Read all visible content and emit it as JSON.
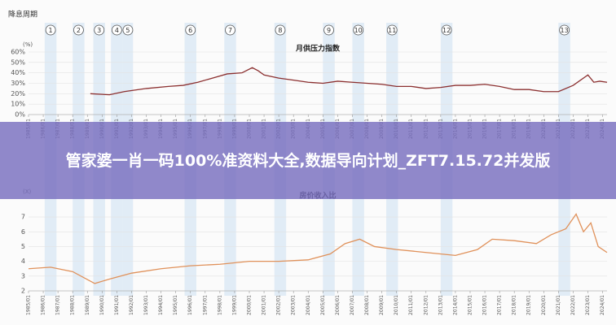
{
  "rate_cut_cycles": {
    "label": "降息周期",
    "xlim": [
      1985,
      2024.3
    ],
    "periods": [
      {
        "label": "1",
        "start": 1986.1,
        "end": 1986.9
      },
      {
        "label": "2",
        "start": 1988.0,
        "end": 1988.8
      },
      {
        "label": "3",
        "start": 1989.4,
        "end": 1990.2
      },
      {
        "label": "4",
        "start": 1990.6,
        "end": 1991.4
      },
      {
        "label": "5",
        "start": 1991.4,
        "end": 1992.1
      },
      {
        "label": "6",
        "start": 1995.6,
        "end": 1996.4
      },
      {
        "label": "7",
        "start": 1998.3,
        "end": 1999.1
      },
      {
        "label": "8",
        "start": 2001.7,
        "end": 2002.5
      },
      {
        "label": "9",
        "start": 2005.0,
        "end": 2005.8
      },
      {
        "label": "10",
        "start": 2007.0,
        "end": 2007.8
      },
      {
        "label": "11",
        "start": 2009.3,
        "end": 2010.1
      },
      {
        "label": "12",
        "start": 2013.0,
        "end": 2013.8
      },
      {
        "label": "13",
        "start": 2021.0,
        "end": 2021.8
      }
    ]
  },
  "chart_data": [
    {
      "type": "line",
      "title": "月供压力指数",
      "y_unit": "(%)",
      "xlim": [
        1985,
        2024.3
      ],
      "ylim": [
        0,
        60
      ],
      "yticks": [
        {
          "value": 0,
          "label": "0%"
        },
        {
          "value": 10,
          "label": "10%"
        },
        {
          "value": 20,
          "label": "20%"
        },
        {
          "value": 30,
          "label": "30%"
        },
        {
          "value": 40,
          "label": "40%"
        },
        {
          "value": 50,
          "label": "50%"
        },
        {
          "value": 60,
          "label": "60%"
        }
      ],
      "xticks": [
        {
          "value": 1985,
          "label": "1985/01"
        },
        {
          "value": 1986,
          "label": "1986/01"
        },
        {
          "value": 1987,
          "label": "1987/01"
        },
        {
          "value": 1988,
          "label": "1988/01"
        },
        {
          "value": 1989,
          "label": "1989/01"
        },
        {
          "value": 1990,
          "label": "1990/01"
        },
        {
          "value": 1991,
          "label": "1991/01"
        },
        {
          "value": 1992,
          "label": "1992/01"
        },
        {
          "value": 1993,
          "label": "1993/01"
        },
        {
          "value": 1994,
          "label": "1994/01"
        },
        {
          "value": 1995,
          "label": "1995/01"
        },
        {
          "value": 1996,
          "label": "1996/01"
        },
        {
          "value": 1997,
          "label": "1997/01"
        },
        {
          "value": 1998,
          "label": "1998/01"
        },
        {
          "value": 1999,
          "label": "1999/01"
        },
        {
          "value": 2000,
          "label": "2000/01"
        },
        {
          "value": 2001,
          "label": "2001/01"
        },
        {
          "value": 2002,
          "label": "2002/01"
        },
        {
          "value": 2003,
          "label": "2003/01"
        },
        {
          "value": 2004,
          "label": "2004/01"
        },
        {
          "value": 2005,
          "label": "2005/01"
        },
        {
          "value": 2006,
          "label": "2006/01"
        },
        {
          "value": 2007,
          "label": "2007/01"
        },
        {
          "value": 2008,
          "label": "2008/01"
        },
        {
          "value": 2009,
          "label": "2009/01"
        },
        {
          "value": 2010,
          "label": "2010/01"
        },
        {
          "value": 2011,
          "label": "2011/01"
        },
        {
          "value": 2012,
          "label": "2012/01"
        },
        {
          "value": 2013,
          "label": "2013/01"
        },
        {
          "value": 2014,
          "label": "2014/01"
        },
        {
          "value": 2015,
          "label": "2015/01"
        },
        {
          "value": 2016,
          "label": "2016/01"
        },
        {
          "value": 2017,
          "label": "2017/01"
        },
        {
          "value": 2018,
          "label": "2018/01"
        },
        {
          "value": 2019,
          "label": "2019/01"
        },
        {
          "value": 2020,
          "label": "2020/01"
        },
        {
          "value": 2021,
          "label": "2021/01"
        },
        {
          "value": 2022,
          "label": "2022/01"
        },
        {
          "value": 2023,
          "label": "2023/01"
        },
        {
          "value": 2024,
          "label": "2024/01"
        }
      ],
      "x": [
        1989.2,
        1990.5,
        1991.5,
        1993,
        1994.5,
        1995.5,
        1996.5,
        1997.5,
        1998.5,
        1999.5,
        2000.2,
        2000.6,
        2001,
        2002,
        2003,
        2004,
        2005,
        2006,
        2007,
        2008,
        2009,
        2010,
        2011,
        2012,
        2013,
        2014,
        2015,
        2016,
        2017,
        2018,
        2019,
        2020,
        2021,
        2022,
        2023,
        2023.4,
        2023.8,
        2024.3
      ],
      "series": [
        {
          "color": "#8b2f2f",
          "values": [
            20,
            19,
            22,
            25,
            27,
            28,
            31,
            35,
            39,
            40,
            45,
            42,
            38,
            35,
            33,
            31,
            30,
            32,
            31,
            30,
            29,
            27,
            27,
            25,
            26,
            28,
            28,
            29,
            27,
            24,
            24,
            22,
            22,
            28,
            38,
            31,
            32,
            31
          ]
        }
      ]
    },
    {
      "type": "line",
      "title": "房价收入比",
      "y_unit": "(X)",
      "xlim": [
        1985,
        2024.3
      ],
      "ylim": [
        2,
        7.5
      ],
      "yticks": [
        2,
        3,
        4,
        5,
        6,
        7
      ],
      "xticks": [
        {
          "value": 1985,
          "label": "1985/01"
        },
        {
          "value": 1986,
          "label": "1986/01"
        },
        {
          "value": 1987,
          "label": "1987/01"
        },
        {
          "value": 1988,
          "label": "1988/01"
        },
        {
          "value": 1989,
          "label": "1989/01"
        },
        {
          "value": 1990,
          "label": "1990/01"
        },
        {
          "value": 1991,
          "label": "1991/01"
        },
        {
          "value": 1992,
          "label": "1992/01"
        },
        {
          "value": 1993,
          "label": "1993/01"
        },
        {
          "value": 1994,
          "label": "1994/01"
        },
        {
          "value": 1995,
          "label": "1995/01"
        },
        {
          "value": 1996,
          "label": "1996/01"
        },
        {
          "value": 1997,
          "label": "1997/01"
        },
        {
          "value": 1998,
          "label": "1998/01"
        },
        {
          "value": 1999,
          "label": "1999/01"
        },
        {
          "value": 2000,
          "label": "2000/01"
        },
        {
          "value": 2001,
          "label": "2001/01"
        },
        {
          "value": 2002,
          "label": "2002/01"
        },
        {
          "value": 2003,
          "label": "2003/01"
        },
        {
          "value": 2004,
          "label": "2004/01"
        },
        {
          "value": 2005,
          "label": "2005/01"
        },
        {
          "value": 2006,
          "label": "2006/01"
        },
        {
          "value": 2007,
          "label": "2007/01"
        },
        {
          "value": 2008,
          "label": "2008/01"
        },
        {
          "value": 2009,
          "label": "2009/01"
        },
        {
          "value": 2010,
          "label": "2010/01"
        },
        {
          "value": 2011,
          "label": "2011/01"
        },
        {
          "value": 2012,
          "label": "2012/01"
        },
        {
          "value": 2013,
          "label": "2013/01"
        },
        {
          "value": 2014,
          "label": "2014/01"
        },
        {
          "value": 2015,
          "label": "2015/01"
        },
        {
          "value": 2016,
          "label": "2016/01"
        },
        {
          "value": 2017,
          "label": "2017/01"
        },
        {
          "value": 2018,
          "label": "2018/01"
        },
        {
          "value": 2019,
          "label": "2019/01"
        },
        {
          "value": 2020,
          "label": "2020/01"
        },
        {
          "value": 2021,
          "label": "2021/01"
        },
        {
          "value": 2022,
          "label": "2022/01"
        },
        {
          "value": 2023,
          "label": "2023/01"
        },
        {
          "value": 2024,
          "label": "2024/01"
        }
      ],
      "x": [
        1985,
        1986.5,
        1988,
        1989.5,
        1990.5,
        1992,
        1994,
        1996,
        1998,
        2000,
        2002,
        2004,
        2005.5,
        2006.5,
        2007.5,
        2008.5,
        2010,
        2012,
        2014,
        2015.5,
        2016.5,
        2018,
        2019.5,
        2020.5,
        2021.5,
        2022.2,
        2022.7,
        2023.2,
        2023.7,
        2024.3
      ],
      "series": [
        {
          "color": "#e0915a",
          "values": [
            3.5,
            3.6,
            3.3,
            2.5,
            2.8,
            3.2,
            3.5,
            3.7,
            3.8,
            4.0,
            4.0,
            4.1,
            4.5,
            5.2,
            5.5,
            5.0,
            4.8,
            4.6,
            4.4,
            4.8,
            5.5,
            5.4,
            5.2,
            5.8,
            6.2,
            7.2,
            6.0,
            6.6,
            5.0,
            4.6
          ]
        }
      ]
    }
  ],
  "banner": {
    "text": "管家婆一肖一码100%准资料大全,数据导向计划_ZFT7.15.72并发版"
  }
}
